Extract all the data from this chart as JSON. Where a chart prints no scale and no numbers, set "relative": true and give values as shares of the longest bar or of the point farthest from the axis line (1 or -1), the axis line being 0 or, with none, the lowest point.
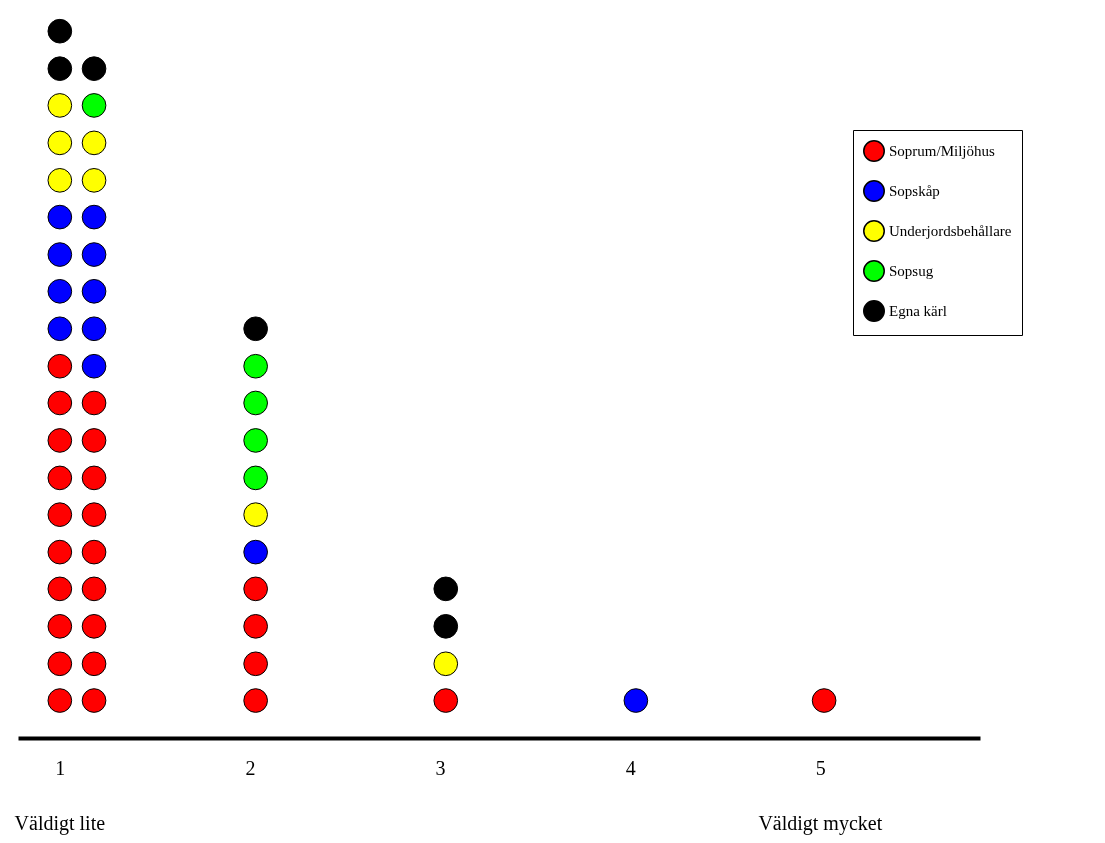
{
  "chart_data": {
    "type": "scatter",
    "relative": true,
    "xlim": [
      0.78,
      5.84
    ],
    "xticks": [
      1,
      2,
      3,
      4,
      5
    ],
    "tick_labels": "x",
    "grid": false,
    "marker": "circle",
    "legend": "top right",
    "annotations": [
      "Väldigt lite",
      "Väldigt mycket"
    ],
    "series": [
      {
        "name": "Soprum/Miljöhus",
        "color": "#ff0000",
        "x": [
          1,
          1,
          1,
          1,
          1,
          1,
          1,
          1,
          1,
          1,
          1.18,
          1.18,
          1.18,
          1.18,
          1.18,
          1.18,
          1.18,
          1.18,
          1.18,
          2.03,
          2.03,
          2.03,
          2.03,
          3.03,
          5.02
        ],
        "values": [
          0.053,
          0.105,
          0.158,
          0.211,
          0.263,
          0.316,
          0.368,
          0.421,
          0.474,
          0.526,
          0.053,
          0.105,
          0.158,
          0.211,
          0.263,
          0.316,
          0.368,
          0.421,
          0.474,
          0.053,
          0.105,
          0.158,
          0.211,
          0.053,
          0.053
        ]
      },
      {
        "name": "Sopskåp",
        "color": "#0000ff",
        "x": [
          1,
          1,
          1,
          1,
          1.18,
          1.18,
          1.18,
          1.18,
          1.18,
          2.03,
          4.03
        ],
        "values": [
          0.579,
          0.632,
          0.684,
          0.737,
          0.526,
          0.579,
          0.632,
          0.684,
          0.737,
          0.263,
          0.053
        ]
      },
      {
        "name": "Underjordsbehållare",
        "color": "#ffff00",
        "x": [
          1,
          1,
          1,
          1.18,
          1.18,
          2.03,
          3.03
        ],
        "values": [
          0.789,
          0.842,
          0.895,
          0.789,
          0.842,
          0.316,
          0.105
        ]
      },
      {
        "name": "Sopsug",
        "color": "#00ff00",
        "x": [
          1.18,
          2.03,
          2.03,
          2.03,
          2.03
        ],
        "values": [
          0.895,
          0.368,
          0.421,
          0.474,
          0.526
        ]
      },
      {
        "name": "Egna kärl",
        "color": "#000000",
        "x": [
          1,
          1,
          1.18,
          2.03,
          3.03,
          3.03
        ],
        "values": [
          0.947,
          1,
          0.947,
          0.579,
          0.158,
          0.211
        ]
      }
    ]
  }
}
